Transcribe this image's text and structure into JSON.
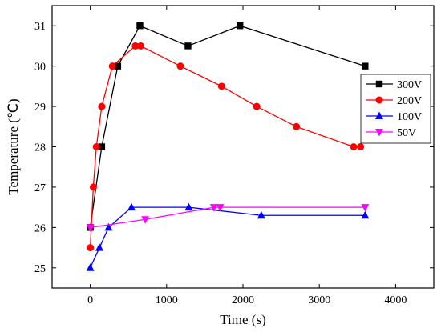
{
  "chart_data": {
    "type": "line",
    "xlabel": "Time (s)",
    "ylabel": "Temperature (℃)",
    "xlim": [
      -500,
      4500
    ],
    "ylim": [
      24.5,
      31.5
    ],
    "xticks": [
      0,
      1000,
      2000,
      3000,
      4000
    ],
    "yticks": [
      25,
      26,
      27,
      28,
      29,
      30,
      31
    ],
    "grid": false,
    "legend_position": "right",
    "series": [
      {
        "name": "300V",
        "color": "#000000",
        "marker": "square",
        "points": [
          [
            0,
            26
          ],
          [
            150,
            28
          ],
          [
            360,
            30
          ],
          [
            650,
            31
          ],
          [
            1280,
            30.5
          ],
          [
            1960,
            31
          ],
          [
            3600,
            30
          ]
        ]
      },
      {
        "name": "200V",
        "color": "#ff0000",
        "marker": "circle",
        "points": [
          [
            0,
            25.5
          ],
          [
            40,
            27
          ],
          [
            80,
            28
          ],
          [
            150,
            29
          ],
          [
            290,
            30
          ],
          [
            590,
            30.5
          ],
          [
            660,
            30.5
          ],
          [
            1180,
            30
          ],
          [
            1720,
            29.5
          ],
          [
            2180,
            29
          ],
          [
            2700,
            28.5
          ],
          [
            3450,
            28
          ],
          [
            3540,
            28
          ]
        ]
      },
      {
        "name": "100V",
        "color": "#0000ff",
        "marker": "triangle-up",
        "points": [
          [
            0,
            25
          ],
          [
            120,
            25.5
          ],
          [
            240,
            26
          ],
          [
            540,
            26.5
          ],
          [
            1290,
            26.5
          ],
          [
            2240,
            26.3
          ],
          [
            3600,
            26.3
          ]
        ]
      },
      {
        "name": "50V",
        "color": "#ff00ff",
        "marker": "triangle-down",
        "points": [
          [
            0,
            26
          ],
          [
            720,
            26.2
          ],
          [
            1620,
            26.5
          ],
          [
            1700,
            26.5
          ],
          [
            3600,
            26.5
          ]
        ]
      }
    ]
  }
}
